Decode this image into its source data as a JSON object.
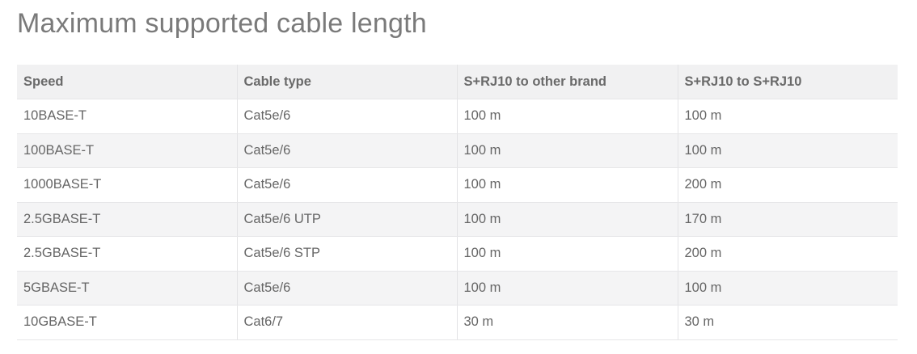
{
  "title": "Maximum supported cable length",
  "table": {
    "headers": [
      "Speed",
      "Cable type",
      "S+RJ10 to other brand",
      "S+RJ10 to S+RJ10"
    ],
    "rows": [
      [
        "10BASE-T",
        "Cat5e/6",
        "100 m",
        "100 m"
      ],
      [
        "100BASE-T",
        "Cat5e/6",
        "100 m",
        "100 m"
      ],
      [
        "1000BASE-T",
        "Cat5e/6",
        "100 m",
        "200 m"
      ],
      [
        "2.5GBASE-T",
        "Cat5e/6 UTP",
        "100 m",
        "170 m"
      ],
      [
        "2.5GBASE-T",
        "Cat5e/6 STP",
        "100 m",
        "200 m"
      ],
      [
        "5GBASE-T",
        "Cat5e/6",
        "100 m",
        "100 m"
      ],
      [
        "10GBASE-T",
        "Cat6/7",
        "30 m",
        "30 m"
      ]
    ]
  }
}
